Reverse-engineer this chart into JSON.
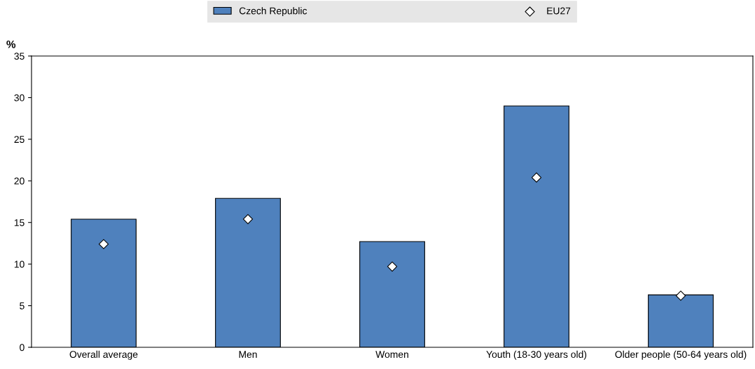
{
  "chart_data": {
    "type": "bar",
    "ylabel": "%",
    "categories": [
      "Overall average",
      "Men",
      "Women",
      "Youth (18-30 years old)",
      "Older people (50-64 years old)"
    ],
    "series": [
      {
        "name": "Czech Republic",
        "color": "#4f81bd",
        "values": [
          15.4,
          17.9,
          12.7,
          29.0,
          6.3
        ]
      },
      {
        "name": "EU27",
        "type": "scatter",
        "color": "#ffffff",
        "marker": "diamond",
        "values": [
          12.4,
          15.4,
          9.7,
          20.4,
          6.2
        ]
      }
    ],
    "ylim": [
      0,
      35
    ],
    "yticks": [
      0,
      5,
      10,
      15,
      20,
      25,
      30,
      35
    ],
    "grid": false,
    "legend": "top"
  }
}
